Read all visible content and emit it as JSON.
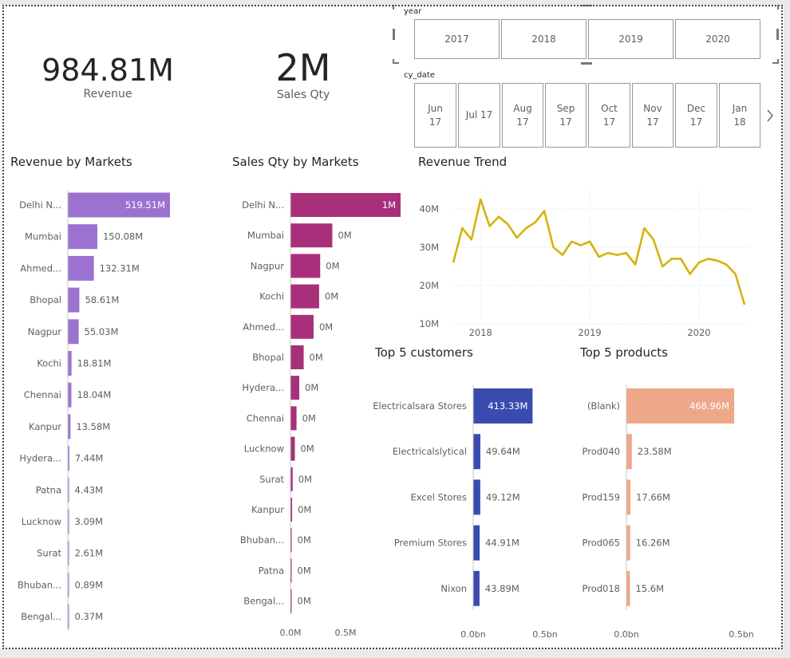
{
  "kpis": [
    {
      "value": "984.81M",
      "label": "Revenue"
    },
    {
      "value": "2M",
      "label": "Sales Qty"
    }
  ],
  "year_slicer": {
    "title": "year",
    "options": [
      "2017",
      "2018",
      "2019",
      "2020"
    ]
  },
  "date_slicer": {
    "title": "cy_date",
    "options": [
      "Jun\n17",
      "Jul 17",
      "Aug\n17",
      "Sep\n17",
      "Oct\n17",
      "Nov\n17",
      "Dec\n17",
      "Jan\n18"
    ],
    "next_icon": "chevron-right-icon"
  },
  "colors": {
    "revenue_bar": "#9b72d0",
    "qty_bar": "#a8307a",
    "trend_line": "#d4b30b",
    "customers_bar": "#3a4bb0",
    "products_bar": "#eea789"
  },
  "chart_data": [
    {
      "id": "revenue_by_markets",
      "type": "bar",
      "orientation": "horizontal",
      "title": "Revenue by Markets",
      "categories": [
        "Delhi N...",
        "Mumbai",
        "Ahmed...",
        "Bhopal",
        "Nagpur",
        "Kochi",
        "Chennai",
        "Kanpur",
        "Hydera...",
        "Patna",
        "Lucknow",
        "Surat",
        "Bhuban...",
        "Bengal..."
      ],
      "values": [
        519.51,
        150.08,
        132.31,
        58.61,
        55.03,
        18.81,
        18.04,
        13.58,
        7.44,
        4.43,
        3.09,
        2.61,
        0.89,
        0.37
      ],
      "labels": [
        "519.51M",
        "150.08M",
        "132.31M",
        "58.61M",
        "55.03M",
        "18.81M",
        "18.04M",
        "13.58M",
        "7.44M",
        "4.43M",
        "3.09M",
        "2.61M",
        "0.89M",
        "0.37M"
      ],
      "unit": "M"
    },
    {
      "id": "sales_qty_by_markets",
      "type": "bar",
      "orientation": "horizontal",
      "title": "Sales Qty by Markets",
      "categories": [
        "Delhi N...",
        "Mumbai",
        "Nagpur",
        "Kochi",
        "Ahmed...",
        "Bhopal",
        "Hydera...",
        "Chennai",
        "Lucknow",
        "Surat",
        "Kanpur",
        "Bhuban...",
        "Patna",
        "Bengal..."
      ],
      "values": [
        1.0,
        0.38,
        0.27,
        0.26,
        0.21,
        0.12,
        0.08,
        0.055,
        0.04,
        0.02,
        0.015,
        0.01,
        0.008,
        0.005
      ],
      "labels": [
        "1M",
        "0M",
        "0M",
        "0M",
        "0M",
        "0M",
        "0M",
        "0M",
        "0M",
        "0M",
        "0M",
        "0M",
        "0M",
        "0M"
      ],
      "xticks": [
        "0.0M",
        "0.5M"
      ],
      "xlim": [
        0,
        1.0
      ],
      "unit": "M"
    },
    {
      "id": "revenue_trend",
      "type": "line",
      "title": "Revenue Trend",
      "x": [
        "2017-10",
        "2017-11",
        "2017-12",
        "2018-01",
        "2018-02",
        "2018-03",
        "2018-04",
        "2018-05",
        "2018-06",
        "2018-07",
        "2018-08",
        "2018-09",
        "2018-10",
        "2018-11",
        "2018-12",
        "2019-01",
        "2019-02",
        "2019-03",
        "2019-04",
        "2019-05",
        "2019-06",
        "2019-07",
        "2019-08",
        "2019-09",
        "2019-10",
        "2019-11",
        "2019-12",
        "2020-01",
        "2020-02",
        "2020-03",
        "2020-04",
        "2020-05",
        "2020-06"
      ],
      "values": [
        26,
        35,
        32,
        42.5,
        35.5,
        38,
        36,
        32.5,
        35,
        36.5,
        39.5,
        30,
        28,
        31.5,
        30.5,
        31.5,
        27.5,
        28.5,
        28,
        28.5,
        25.5,
        35,
        32,
        25,
        27,
        27,
        23,
        26,
        27,
        26.5,
        25.5,
        23,
        15
      ],
      "yticks": [
        "10M",
        "20M",
        "30M",
        "40M"
      ],
      "ytick_values": [
        10,
        20,
        30,
        40
      ],
      "xticks": [
        "2018",
        "2019",
        "2020"
      ],
      "ylim": [
        10,
        45
      ],
      "unit": "M"
    },
    {
      "id": "top5_customers",
      "type": "bar",
      "orientation": "horizontal",
      "title": "Top 5 customers",
      "categories": [
        "Electricalsara Stores",
        "Electricalslytical",
        "Excel Stores",
        "Premium Stores",
        "Nixon"
      ],
      "values": [
        413.33,
        49.64,
        49.12,
        44.91,
        43.89
      ],
      "labels": [
        "413.33M",
        "49.64M",
        "49.12M",
        "44.91M",
        "43.89M"
      ],
      "xticks": [
        "0.0bn",
        "0.5bn"
      ],
      "xlim": [
        0,
        500
      ],
      "unit": "M"
    },
    {
      "id": "top5_products",
      "type": "bar",
      "orientation": "horizontal",
      "title": "Top 5 products",
      "categories": [
        "(Blank)",
        "Prod040",
        "Prod159",
        "Prod065",
        "Prod018"
      ],
      "values": [
        468.96,
        23.58,
        17.66,
        16.26,
        15.6
      ],
      "labels": [
        "468.96M",
        "23.58M",
        "17.66M",
        "16.26M",
        "15.6M"
      ],
      "xticks": [
        "0.0bn",
        "0.5bn"
      ],
      "xlim": [
        0,
        500
      ],
      "unit": "M"
    }
  ]
}
